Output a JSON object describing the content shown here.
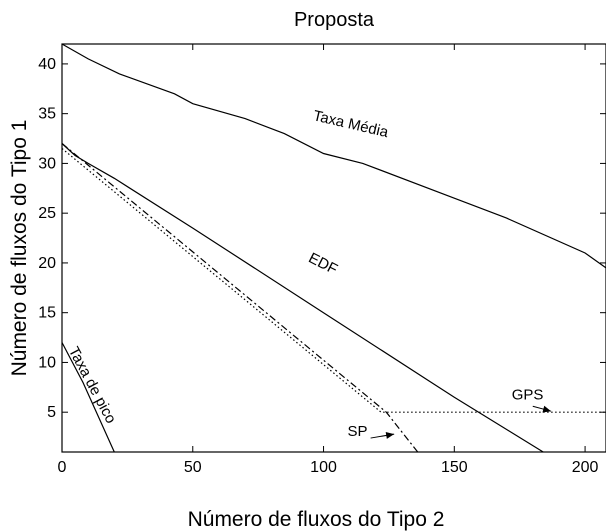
{
  "chart_data": {
    "type": "line",
    "title": "Proposta",
    "xlabel": "Número de fluxos do Tipo 2",
    "ylabel": "Número de fluxos do Tipo 1",
    "xlim": [
      0,
      208
    ],
    "ylim": [
      1,
      42
    ],
    "xticks": [
      0,
      50,
      100,
      150,
      200
    ],
    "yticks": [
      5,
      10,
      15,
      20,
      25,
      30,
      35,
      40
    ],
    "grid": false,
    "legend": "none",
    "series": [
      {
        "name": "Taxa Média",
        "style": "solid",
        "x": [
          0,
          10,
          22,
          43,
          50,
          70,
          85,
          100,
          115,
          150,
          170,
          200,
          208
        ],
        "y": [
          42,
          40.5,
          39,
          37,
          36,
          34.5,
          33,
          31,
          30,
          26.5,
          24.5,
          21,
          19.5
        ]
      },
      {
        "name": "EDF",
        "style": "solid",
        "x": [
          0,
          5,
          10,
          20,
          50,
          100,
          150,
          184
        ],
        "y": [
          32,
          30.8,
          30,
          28.5,
          23.5,
          15,
          6.5,
          1
        ]
      },
      {
        "name": "SP",
        "style": "dashdot",
        "x": [
          0,
          124,
          130,
          136
        ],
        "y": [
          32,
          5,
          3,
          1
        ]
      },
      {
        "name": "GPS",
        "style": "dotted",
        "x": [
          0,
          122,
          208
        ],
        "y": [
          31.5,
          5,
          5
        ]
      },
      {
        "name": "Taxa de pico",
        "style": "solid",
        "x": [
          0,
          8,
          20
        ],
        "y": [
          12,
          8,
          1
        ]
      }
    ],
    "annotations": [
      {
        "text": "Taxa Média",
        "x": 110,
        "y": 33.5,
        "rotate": 13
      },
      {
        "text": "EDF",
        "x": 99,
        "y": 19.5,
        "rotate": 27
      },
      {
        "text": "GPS",
        "x": 178,
        "y": 6.3,
        "rotate": 0
      },
      {
        "text": "SP",
        "x": 113,
        "y": 2.6,
        "rotate": 0
      },
      {
        "text": "Taxa de pico",
        "x": 10,
        "y": 7.5,
        "rotate": 62
      }
    ],
    "arrows": [
      {
        "from": [
          180,
          5.6
        ],
        "to": [
          187,
          5.1
        ]
      },
      {
        "from": [
          118,
          2.4
        ],
        "to": [
          127,
          2.8
        ]
      }
    ]
  }
}
